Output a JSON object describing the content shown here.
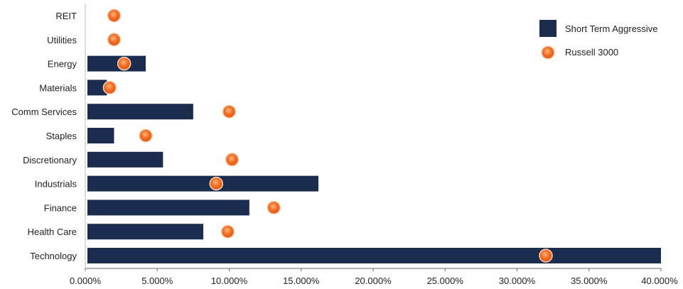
{
  "chart_data": {
    "type": "bar",
    "orientation": "horizontal",
    "categories": [
      "REIT",
      "Utilities",
      "Energy",
      "Materials",
      "Comm Services",
      "Staples",
      "Discretionary",
      "Industrials",
      "Finance",
      "Health Care",
      "Technology"
    ],
    "series": [
      {
        "name": "Short Term Aggressive",
        "mark": "bar",
        "color": "#1b2d4f",
        "values": [
          0,
          0,
          4.2,
          1.5,
          7.5,
          2.0,
          5.4,
          16.2,
          11.4,
          8.2,
          40.0
        ]
      },
      {
        "name": "Russell 3000",
        "mark": "circle",
        "color": "#f26b21",
        "values": [
          2.0,
          2.0,
          2.7,
          1.7,
          10.0,
          4.2,
          10.2,
          9.1,
          13.1,
          9.9,
          32.0
        ]
      }
    ],
    "xlim": [
      0,
      40
    ],
    "x_ticks": [
      "0.000%",
      "5.000%",
      "10.000%",
      "15.000%",
      "20.000%",
      "25.000%",
      "30.000%",
      "35.000%",
      "40.000%"
    ],
    "title": "",
    "xlabel": "",
    "ylabel": "",
    "grid": false,
    "legend_position": "top-right"
  }
}
